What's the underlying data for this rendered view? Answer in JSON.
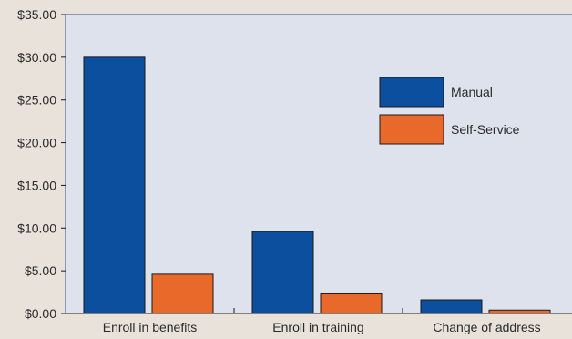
{
  "chart_data": {
    "type": "bar",
    "categories": [
      "Enroll in benefits",
      "Enroll in training",
      "Change of address"
    ],
    "series": [
      {
        "name": "Manual",
        "values": [
          30.0,
          9.6,
          1.6
        ],
        "color": "#0b4f9e"
      },
      {
        "name": "Self-Service",
        "values": [
          4.6,
          2.3,
          0.4
        ],
        "color": "#e8692a"
      }
    ],
    "title": "",
    "xlabel": "",
    "ylabel": "",
    "ylim": [
      0,
      35
    ],
    "y_ticks": [
      {
        "value": 0,
        "label": "$0.00"
      },
      {
        "value": 5,
        "label": "$5.00"
      },
      {
        "value": 10,
        "label": "$10.00"
      },
      {
        "value": 15,
        "label": "$15.00"
      },
      {
        "value": 20,
        "label": "$20.00"
      },
      {
        "value": 25,
        "label": "$25.00"
      },
      {
        "value": 30,
        "label": "$30.00"
      },
      {
        "value": 35,
        "label": "$35.00"
      }
    ],
    "grid": false,
    "legend_position": "top-right",
    "plot_background": "#dde2ec",
    "page_background": "#e9e2db",
    "axis_color": "#2e4f8c"
  }
}
